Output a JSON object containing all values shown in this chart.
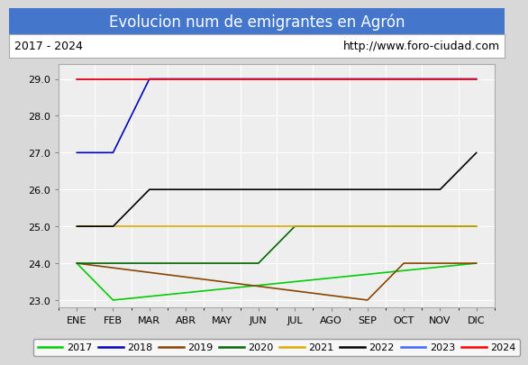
{
  "title": "Evolucion num de emigrantes en Agrón",
  "subtitle_left": "2017 - 2024",
  "subtitle_right": "http://www.foro-ciudad.com",
  "x_labels": [
    "ENE",
    "FEB",
    "MAR",
    "ABR",
    "MAY",
    "JUN",
    "JUL",
    "AGO",
    "SEP",
    "OCT",
    "NOV",
    "DIC"
  ],
  "ylim": [
    22.8,
    29.4
  ],
  "yticks": [
    23.0,
    24.0,
    25.0,
    26.0,
    27.0,
    28.0,
    29.0
  ],
  "series": [
    {
      "year": "2017",
      "color": "#00cc00",
      "data": [
        [
          0,
          24.0
        ],
        [
          1,
          23.0
        ],
        [
          11,
          24.0
        ]
      ]
    },
    {
      "year": "2018",
      "color": "#0000bb",
      "data": [
        [
          0,
          27.0
        ],
        [
          1,
          27.0
        ],
        [
          2,
          29.0
        ],
        [
          11,
          29.0
        ]
      ]
    },
    {
      "year": "2019",
      "color": "#884400",
      "data": [
        [
          0,
          24.0
        ],
        [
          8,
          23.0
        ],
        [
          9,
          24.0
        ],
        [
          11,
          24.0
        ]
      ]
    },
    {
      "year": "2020",
      "color": "#006600",
      "data": [
        [
          0,
          24.0
        ],
        [
          5,
          24.0
        ],
        [
          6,
          25.0
        ],
        [
          11,
          25.0
        ]
      ]
    },
    {
      "year": "2021",
      "color": "#ddaa00",
      "data": [
        [
          0,
          25.0
        ],
        [
          11,
          25.0
        ]
      ]
    },
    {
      "year": "2022",
      "color": "#000000",
      "data": [
        [
          0,
          25.0
        ],
        [
          1,
          25.0
        ],
        [
          2,
          26.0
        ],
        [
          10,
          26.0
        ],
        [
          11,
          27.0
        ]
      ]
    },
    {
      "year": "2023",
      "color": "#4466ff",
      "data": [
        [
          0,
          29.0
        ],
        [
          11,
          29.0
        ]
      ]
    },
    {
      "year": "2024",
      "color": "#ff0000",
      "data": [
        [
          0,
          29.0
        ],
        [
          11,
          29.0
        ]
      ]
    }
  ],
  "title_bg": "#4477cc",
  "title_fg": "#ffffff",
  "fig_bg": "#d8d8d8",
  "plot_bg": "#eeeeee",
  "grid_color": "#ffffff",
  "subtitle_box_bg": "#ffffff",
  "title_fontsize": 12,
  "tick_fontsize": 8,
  "legend_fontsize": 8
}
